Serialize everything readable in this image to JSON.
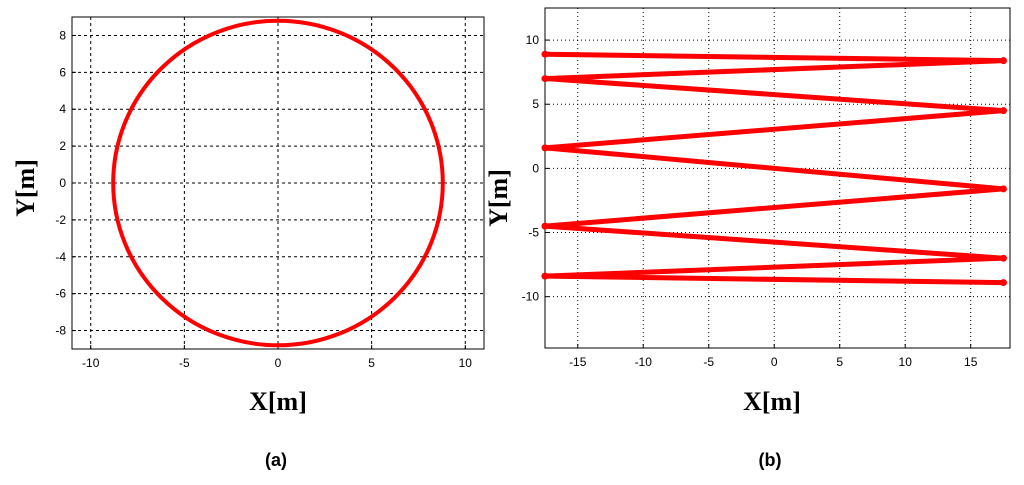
{
  "chart_data": [
    {
      "type": "line",
      "xlabel": "X[m]",
      "ylabel": "Y[m]",
      "caption": "(a)",
      "xlim": [
        -11,
        11
      ],
      "ylim": [
        -9,
        9
      ],
      "xticks": [
        -10,
        -5,
        0,
        5,
        10
      ],
      "yticks": [
        -8,
        -6,
        -4,
        -2,
        0,
        2,
        4,
        6,
        8
      ],
      "grid": true,
      "series_color": "#ff0000",
      "series": [
        {
          "shape": "circle",
          "center": [
            0,
            0
          ],
          "radius": 8.8
        }
      ]
    },
    {
      "type": "line",
      "xlabel": "X[m]",
      "ylabel": "Y[m]",
      "caption": "(b)",
      "xlim": [
        -17.5,
        18
      ],
      "ylim": [
        -14,
        12.5
      ],
      "xticks": [
        -15,
        -10,
        -5,
        0,
        5,
        10,
        15
      ],
      "yticks": [
        -10,
        -5,
        0,
        5,
        10
      ],
      "grid": true,
      "series_color": "#ff0000",
      "series": [
        {
          "shape": "zigzag",
          "points": [
            [
              -17.5,
              8.9
            ],
            [
              17.5,
              8.4
            ],
            [
              -17.5,
              7.0
            ],
            [
              17.5,
              4.5
            ],
            [
              -17.5,
              1.6
            ],
            [
              17.5,
              -1.6
            ],
            [
              -17.5,
              -4.5
            ],
            [
              17.5,
              -7.0
            ],
            [
              -17.5,
              -8.4
            ],
            [
              17.5,
              -8.9
            ]
          ]
        }
      ]
    }
  ]
}
